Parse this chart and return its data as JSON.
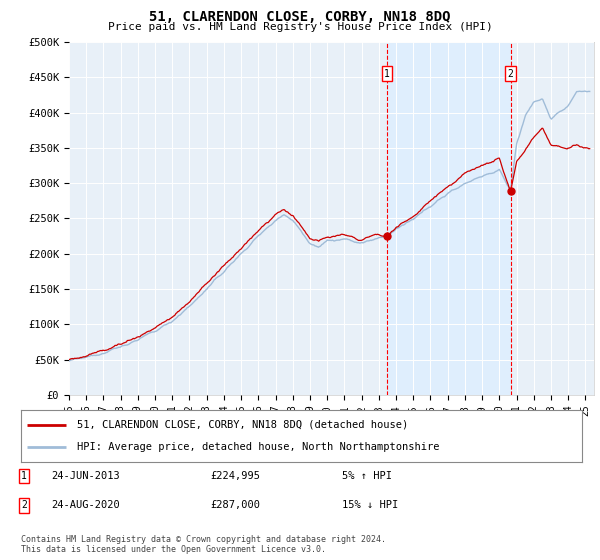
{
  "title": "51, CLARENDON CLOSE, CORBY, NN18 8DQ",
  "subtitle": "Price paid vs. HM Land Registry's House Price Index (HPI)",
  "ylabel_ticks": [
    "£0",
    "£50K",
    "£100K",
    "£150K",
    "£200K",
    "£250K",
    "£300K",
    "£350K",
    "£400K",
    "£450K",
    "£500K"
  ],
  "ytick_values": [
    0,
    50000,
    100000,
    150000,
    200000,
    250000,
    300000,
    350000,
    400000,
    450000,
    500000
  ],
  "ylim": [
    0,
    500000
  ],
  "xlim_start": 1995.0,
  "xlim_end": 2025.5,
  "hpi_color": "#a0bcd8",
  "price_color": "#cc0000",
  "shade_color": "#ddeeff",
  "plot_bg_color": "#e8f0f8",
  "marker1_date": 2013.48,
  "marker1_price": 224995,
  "marker2_date": 2020.65,
  "marker2_price": 287000,
  "legend_line1": "51, CLARENDON CLOSE, CORBY, NN18 8DQ (detached house)",
  "legend_line2": "HPI: Average price, detached house, North Northamptonshire",
  "row1_date": "24-JUN-2013",
  "row1_price": "£224,995",
  "row1_hpi": "5% ↑ HPI",
  "row2_date": "24-AUG-2020",
  "row2_price": "£287,000",
  "row2_hpi": "15% ↓ HPI",
  "footnote": "Contains HM Land Registry data © Crown copyright and database right 2024.\nThis data is licensed under the Open Government Licence v3.0.",
  "xtick_years": [
    1995,
    1996,
    1997,
    1998,
    1999,
    2000,
    2001,
    2002,
    2003,
    2004,
    2005,
    2006,
    2007,
    2008,
    2009,
    2010,
    2011,
    2012,
    2013,
    2014,
    2015,
    2016,
    2017,
    2018,
    2019,
    2020,
    2021,
    2022,
    2023,
    2024,
    2025
  ],
  "xtick_labels": [
    "95",
    "96",
    "97",
    "98",
    "99",
    "00",
    "01",
    "02",
    "03",
    "04",
    "05",
    "06",
    "07",
    "08",
    "09",
    "10",
    "11",
    "12",
    "13",
    "14",
    "15",
    "16",
    "17",
    "18",
    "19",
    "20",
    "21",
    "22",
    "23",
    "24",
    "25"
  ]
}
